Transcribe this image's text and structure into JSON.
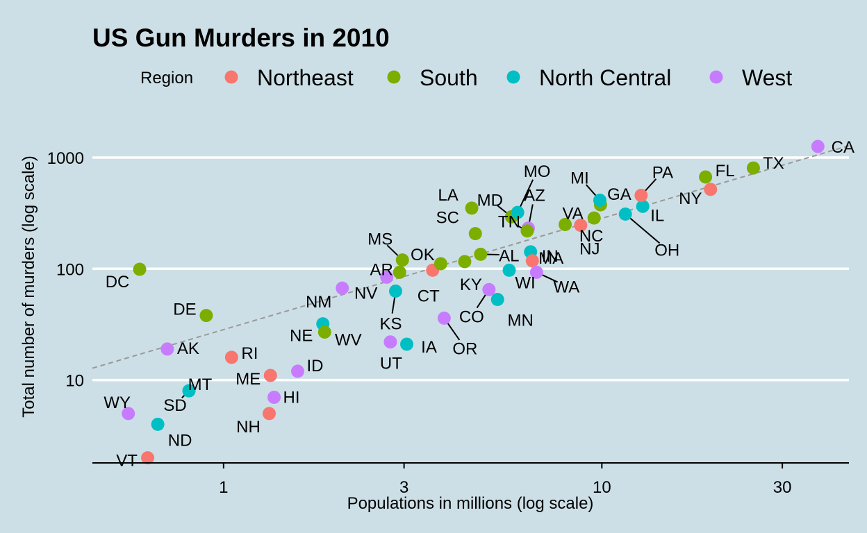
{
  "chart_data": {
    "type": "scatter",
    "title": "US Gun Murders in 2010",
    "xlabel": "Populations in millions (log scale)",
    "ylabel": "Total number of murders (log scale)",
    "x_scale": "log10",
    "y_scale": "log10",
    "xlim": [
      0.45,
      45
    ],
    "ylim": [
      1.8,
      1750
    ],
    "x_ticks": [
      1,
      3,
      10,
      30
    ],
    "x_tick_labels": [
      "1",
      "3",
      "10",
      "30"
    ],
    "y_ticks": [
      10,
      100,
      1000
    ],
    "y_tick_labels": [
      "10",
      "100",
      "1000"
    ],
    "grid": "horizontal major gridlines only",
    "legend_position": "top",
    "legend_title": "Region",
    "regions": [
      {
        "name": "Northeast",
        "color": "#F8766D"
      },
      {
        "name": "South",
        "color": "#7CAE00"
      },
      {
        "name": "North Central",
        "color": "#00BFC4"
      },
      {
        "name": "West",
        "color": "#C77CFF"
      }
    ],
    "reference_line": {
      "style": "dashed",
      "color": "#999999",
      "slope": 1,
      "rate_per_million": 28.4
    },
    "points": [
      {
        "label": "AL",
        "region": "South",
        "x": 4.78,
        "y": 135
      },
      {
        "label": "AK",
        "region": "West",
        "x": 0.71,
        "y": 19
      },
      {
        "label": "AZ",
        "region": "West",
        "x": 6.39,
        "y": 232
      },
      {
        "label": "AR",
        "region": "South",
        "x": 2.92,
        "y": 93
      },
      {
        "label": "CA",
        "region": "West",
        "x": 37.25,
        "y": 1257
      },
      {
        "label": "CO",
        "region": "West",
        "x": 5.03,
        "y": 65
      },
      {
        "label": "CT",
        "region": "Northeast",
        "x": 3.57,
        "y": 97
      },
      {
        "label": "DE",
        "region": "South",
        "x": 0.9,
        "y": 38
      },
      {
        "label": "DC",
        "region": "South",
        "x": 0.6,
        "y": 99
      },
      {
        "label": "FL",
        "region": "South",
        "x": 18.8,
        "y": 669
      },
      {
        "label": "GA",
        "region": "South",
        "x": 9.92,
        "y": 376
      },
      {
        "label": "HI",
        "region": "West",
        "x": 1.36,
        "y": 7
      },
      {
        "label": "ID",
        "region": "West",
        "x": 1.57,
        "y": 12
      },
      {
        "label": "IL",
        "region": "North Central",
        "x": 12.83,
        "y": 364
      },
      {
        "label": "IN",
        "region": "North Central",
        "x": 6.48,
        "y": 142
      },
      {
        "label": "IA",
        "region": "North Central",
        "x": 3.05,
        "y": 21
      },
      {
        "label": "KS",
        "region": "North Central",
        "x": 2.85,
        "y": 63
      },
      {
        "label": "KY",
        "region": "South",
        "x": 4.34,
        "y": 116
      },
      {
        "label": "LA",
        "region": "South",
        "x": 4.53,
        "y": 351
      },
      {
        "label": "ME",
        "region": "Northeast",
        "x": 1.33,
        "y": 11
      },
      {
        "label": "MD",
        "region": "South",
        "x": 5.77,
        "y": 293
      },
      {
        "label": "MA",
        "region": "Northeast",
        "x": 6.55,
        "y": 118
      },
      {
        "label": "MI",
        "region": "North Central",
        "x": 9.88,
        "y": 413
      },
      {
        "label": "MN",
        "region": "North Central",
        "x": 5.3,
        "y": 53
      },
      {
        "label": "MS",
        "region": "South",
        "x": 2.97,
        "y": 120
      },
      {
        "label": "MO",
        "region": "North Central",
        "x": 5.99,
        "y": 321
      },
      {
        "label": "MT",
        "region": "North Central",
        "x": 0.81,
        "y": 8
      },
      {
        "label": "NE",
        "region": "North Central",
        "x": 1.83,
        "y": 32
      },
      {
        "label": "NV",
        "region": "West",
        "x": 2.7,
        "y": 84
      },
      {
        "label": "NH",
        "region": "Northeast",
        "x": 1.32,
        "y": 5
      },
      {
        "label": "NJ",
        "region": "Northeast",
        "x": 8.79,
        "y": 246
      },
      {
        "label": "NM",
        "region": "West",
        "x": 2.06,
        "y": 67
      },
      {
        "label": "NY",
        "region": "Northeast",
        "x": 19.38,
        "y": 517
      },
      {
        "label": "NC",
        "region": "South",
        "x": 9.54,
        "y": 286
      },
      {
        "label": "ND",
        "region": "North Central",
        "x": 0.67,
        "y": 4
      },
      {
        "label": "OH",
        "region": "North Central",
        "x": 11.54,
        "y": 310
      },
      {
        "label": "OK",
        "region": "South",
        "x": 3.75,
        "y": 111
      },
      {
        "label": "OR",
        "region": "West",
        "x": 3.83,
        "y": 36
      },
      {
        "label": "PA",
        "region": "Northeast",
        "x": 12.7,
        "y": 457
      },
      {
        "label": "RI",
        "region": "Northeast",
        "x": 1.05,
        "y": 16
      },
      {
        "label": "SC",
        "region": "South",
        "x": 4.63,
        "y": 207
      },
      {
        "label": "SD",
        "region": "North Central",
        "x": 0.81,
        "y": 8
      },
      {
        "label": "TN",
        "region": "South",
        "x": 6.35,
        "y": 219
      },
      {
        "label": "TX",
        "region": "South",
        "x": 25.15,
        "y": 805
      },
      {
        "label": "UT",
        "region": "West",
        "x": 2.76,
        "y": 22
      },
      {
        "label": "VT",
        "region": "Northeast",
        "x": 0.63,
        "y": 2
      },
      {
        "label": "VA",
        "region": "South",
        "x": 8.0,
        "y": 250
      },
      {
        "label": "WA",
        "region": "West",
        "x": 6.72,
        "y": 93
      },
      {
        "label": "WV",
        "region": "South",
        "x": 1.85,
        "y": 27
      },
      {
        "label": "WI",
        "region": "North Central",
        "x": 5.69,
        "y": 97
      },
      {
        "label": "WY",
        "region": "West",
        "x": 0.56,
        "y": 5
      }
    ]
  }
}
